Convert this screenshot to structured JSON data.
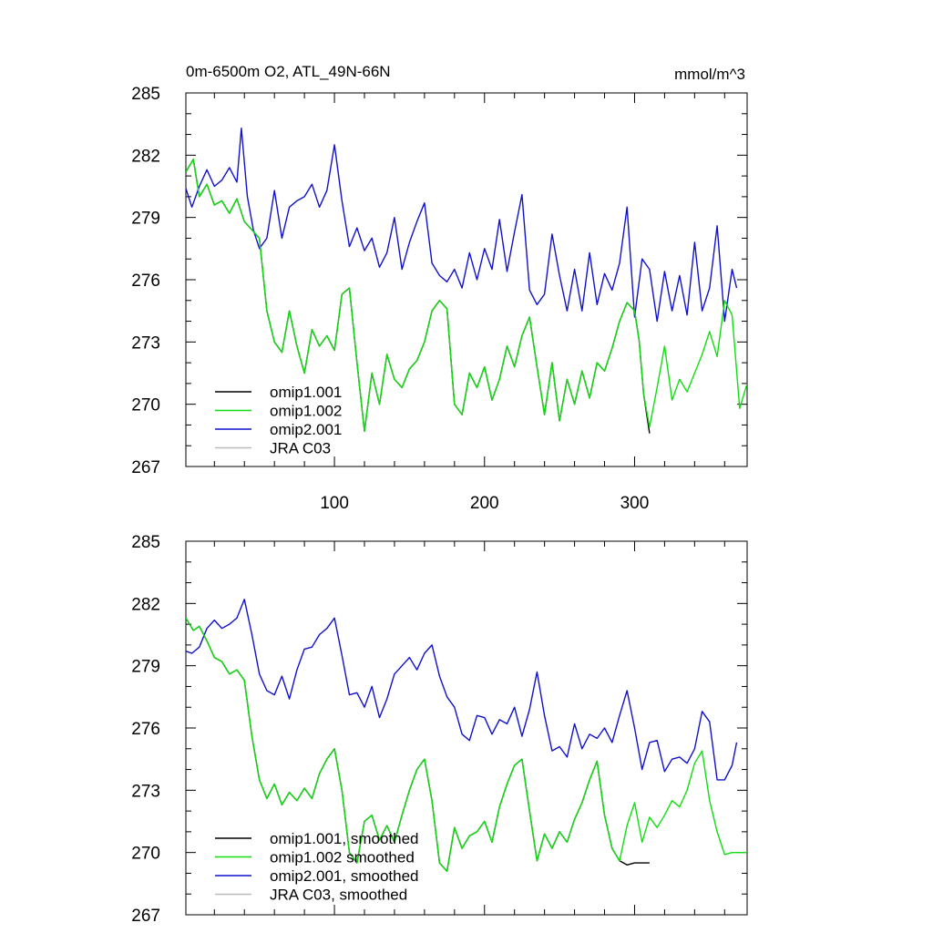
{
  "chart_data": [
    {
      "type": "line",
      "title": "0m-6500m O2, ATL_49N-66N",
      "units": "mmol/m^3",
      "xlim": [
        1,
        375
      ],
      "ylim": [
        267,
        285
      ],
      "yticks": [
        267,
        270,
        273,
        276,
        279,
        282,
        285
      ],
      "xticks": [
        100,
        200,
        300
      ],
      "grid": false,
      "legend_position": "bottom-left",
      "series": [
        {
          "name": "omip1.001",
          "color": "#000000",
          "x": [
            1,
            6,
            10,
            15,
            20,
            25,
            30,
            35,
            40,
            45,
            50,
            55,
            60,
            65,
            70,
            75,
            80,
            85,
            90,
            95,
            100,
            105,
            110,
            115,
            120,
            125,
            130,
            135,
            140,
            145,
            150,
            155,
            160,
            165,
            170,
            175,
            180,
            185,
            190,
            195,
            200,
            205,
            210,
            215,
            220,
            225,
            230,
            235,
            240,
            245,
            250,
            255,
            260,
            265,
            270,
            275,
            280,
            285,
            290,
            295,
            300,
            303,
            306,
            310
          ],
          "values": [
            281.2,
            281.8,
            280.0,
            280.6,
            279.6,
            279.8,
            279.2,
            279.9,
            278.8,
            278.4,
            278.0,
            274.5,
            273.0,
            272.5,
            274.5,
            272.8,
            271.5,
            273.6,
            272.8,
            273.3,
            272.6,
            275.3,
            275.6,
            272.0,
            268.7,
            271.5,
            270.0,
            272.4,
            271.2,
            270.8,
            271.7,
            272.1,
            273.0,
            274.5,
            275.0,
            274.6,
            270.0,
            269.5,
            271.5,
            270.8,
            271.8,
            270.2,
            271.2,
            272.8,
            271.8,
            273.3,
            274.2,
            271.8,
            269.5,
            272.0,
            269.2,
            271.2,
            270.0,
            271.6,
            270.3,
            272.0,
            271.6,
            272.7,
            274.0,
            274.9,
            274.5,
            273.1,
            270.5,
            268.6
          ]
        },
        {
          "name": "omip1.002",
          "color": "#11dd11",
          "x": [
            1,
            6,
            10,
            15,
            20,
            25,
            30,
            35,
            40,
            45,
            50,
            55,
            60,
            65,
            70,
            75,
            80,
            85,
            90,
            95,
            100,
            105,
            110,
            115,
            120,
            125,
            130,
            135,
            140,
            145,
            150,
            155,
            160,
            165,
            170,
            175,
            180,
            185,
            190,
            195,
            200,
            205,
            210,
            215,
            220,
            225,
            230,
            235,
            240,
            245,
            250,
            255,
            260,
            265,
            270,
            275,
            280,
            285,
            290,
            295,
            300,
            303,
            306,
            310,
            315,
            320,
            325,
            330,
            335,
            340,
            345,
            350,
            355,
            360,
            365,
            370,
            375
          ],
          "values": [
            281.2,
            281.8,
            280.0,
            280.6,
            279.6,
            279.8,
            279.2,
            279.9,
            278.8,
            278.4,
            278.0,
            274.5,
            273.0,
            272.5,
            274.5,
            272.8,
            271.5,
            273.6,
            272.8,
            273.3,
            272.6,
            275.3,
            275.6,
            272.0,
            268.7,
            271.5,
            270.0,
            272.4,
            271.2,
            270.8,
            271.7,
            272.1,
            273.0,
            274.5,
            275.0,
            274.6,
            270.0,
            269.5,
            271.5,
            270.8,
            271.8,
            270.2,
            271.2,
            272.8,
            271.8,
            273.3,
            274.2,
            271.8,
            269.5,
            272.0,
            269.2,
            271.2,
            270.0,
            271.6,
            270.3,
            272.0,
            271.6,
            272.7,
            274.0,
            274.9,
            274.5,
            273.1,
            270.5,
            268.9,
            270.8,
            272.8,
            270.2,
            271.2,
            270.6,
            271.5,
            272.4,
            273.5,
            272.3,
            275.0,
            274.3,
            269.8,
            271.0
          ]
        },
        {
          "name": "omip2.001",
          "color": "#1111cc",
          "x": [
            1,
            5,
            10,
            15,
            20,
            25,
            30,
            35,
            38,
            42,
            46,
            50,
            55,
            60,
            65,
            70,
            75,
            80,
            85,
            90,
            95,
            100,
            105,
            110,
            115,
            120,
            125,
            130,
            135,
            140,
            145,
            150,
            155,
            160,
            165,
            170,
            175,
            180,
            185,
            190,
            195,
            200,
            205,
            210,
            215,
            220,
            225,
            230,
            235,
            240,
            245,
            250,
            255,
            260,
            265,
            270,
            275,
            280,
            285,
            290,
            295,
            300,
            305,
            310,
            315,
            320,
            325,
            330,
            335,
            340,
            345,
            350,
            355,
            360,
            365,
            368
          ],
          "values": [
            280.4,
            279.5,
            280.5,
            281.3,
            280.5,
            280.8,
            281.4,
            280.7,
            283.3,
            280.0,
            278.4,
            277.5,
            278.0,
            280.3,
            278.0,
            279.5,
            279.8,
            280.0,
            280.6,
            279.5,
            280.3,
            282.5,
            279.8,
            277.6,
            278.5,
            277.4,
            278.0,
            276.6,
            277.3,
            279.0,
            276.5,
            277.8,
            278.8,
            279.7,
            276.8,
            276.2,
            275.9,
            276.5,
            275.6,
            277.3,
            276.0,
            277.5,
            276.5,
            278.9,
            276.4,
            278.3,
            280.1,
            275.5,
            274.8,
            275.3,
            278.2,
            276.2,
            274.5,
            276.5,
            274.5,
            277.3,
            274.8,
            276.3,
            275.5,
            276.8,
            279.5,
            274.2,
            277.0,
            276.5,
            274.0,
            276.4,
            274.5,
            276.2,
            274.3,
            277.8,
            274.5,
            275.6,
            278.6,
            274.0,
            276.5,
            275.6
          ]
        },
        {
          "name": "JRA C03",
          "color": "#bbbbbb",
          "x": [],
          "values": []
        }
      ]
    },
    {
      "type": "line",
      "title": "",
      "units": "",
      "xlim": [
        1,
        375
      ],
      "ylim": [
        267,
        285
      ],
      "yticks": [
        267,
        270,
        273,
        276,
        279,
        282,
        285
      ],
      "xticks": [],
      "grid": false,
      "legend_position": "bottom-left",
      "series": [
        {
          "name": "omip1.001, smoothed",
          "color": "#000000",
          "x": [
            1,
            6,
            10,
            15,
            20,
            25,
            30,
            35,
            40,
            45,
            50,
            55,
            60,
            65,
            70,
            75,
            80,
            85,
            90,
            95,
            100,
            105,
            110,
            115,
            120,
            125,
            130,
            135,
            140,
            145,
            150,
            155,
            160,
            165,
            170,
            175,
            180,
            185,
            190,
            195,
            200,
            205,
            210,
            215,
            220,
            225,
            230,
            235,
            240,
            245,
            250,
            255,
            260,
            265,
            270,
            275,
            280,
            285,
            290,
            295,
            300,
            305,
            310
          ],
          "values": [
            281.3,
            280.7,
            280.9,
            280.2,
            279.4,
            279.2,
            278.6,
            278.8,
            278.3,
            275.6,
            273.5,
            272.6,
            273.3,
            272.3,
            272.9,
            272.5,
            273.1,
            272.6,
            273.8,
            274.5,
            275.0,
            273.0,
            270.0,
            269.5,
            271.5,
            271.8,
            270.6,
            271.3,
            270.5,
            271.8,
            273.0,
            274.0,
            274.5,
            272.5,
            269.5,
            269.1,
            271.2,
            270.2,
            270.8,
            271.0,
            271.5,
            270.5,
            272.2,
            273.3,
            274.2,
            274.5,
            272.0,
            269.6,
            270.9,
            270.2,
            271.0,
            270.5,
            271.6,
            272.4,
            273.5,
            274.4,
            271.8,
            270.2,
            269.6,
            269.4,
            269.5,
            269.5,
            269.5
          ]
        },
        {
          "name": "omip1.002 smoothed",
          "color": "#11dd11",
          "x": [
            1,
            6,
            10,
            15,
            20,
            25,
            30,
            35,
            40,
            45,
            50,
            55,
            60,
            65,
            70,
            75,
            80,
            85,
            90,
            95,
            100,
            105,
            110,
            115,
            120,
            125,
            130,
            135,
            140,
            145,
            150,
            155,
            160,
            165,
            170,
            175,
            180,
            185,
            190,
            195,
            200,
            205,
            210,
            215,
            220,
            225,
            230,
            235,
            240,
            245,
            250,
            255,
            260,
            265,
            270,
            275,
            280,
            285,
            290,
            295,
            300,
            305,
            310,
            315,
            320,
            325,
            330,
            335,
            340,
            345,
            350,
            355,
            360,
            365,
            370,
            375
          ],
          "values": [
            281.3,
            280.7,
            280.9,
            280.2,
            279.4,
            279.2,
            278.6,
            278.8,
            278.3,
            275.6,
            273.5,
            272.6,
            273.3,
            272.3,
            272.9,
            272.5,
            273.1,
            272.6,
            273.8,
            274.5,
            275.0,
            273.0,
            270.0,
            269.5,
            271.5,
            271.8,
            270.6,
            271.3,
            270.5,
            271.8,
            273.0,
            274.0,
            274.5,
            272.5,
            269.5,
            269.1,
            271.2,
            270.2,
            270.8,
            271.0,
            271.5,
            270.5,
            272.2,
            273.3,
            274.2,
            274.5,
            272.0,
            269.6,
            270.9,
            270.2,
            271.0,
            270.5,
            271.6,
            272.4,
            273.5,
            274.4,
            271.8,
            270.2,
            269.6,
            271.3,
            272.4,
            270.5,
            271.7,
            271.2,
            271.8,
            272.5,
            272.2,
            273.0,
            274.3,
            274.9,
            272.5,
            271.0,
            269.9,
            270.0,
            270.0,
            270.0
          ]
        },
        {
          "name": "omip2.001, smoothed",
          "color": "#1111cc",
          "x": [
            1,
            5,
            10,
            15,
            20,
            25,
            30,
            35,
            40,
            45,
            50,
            55,
            60,
            65,
            70,
            75,
            80,
            85,
            90,
            95,
            100,
            105,
            110,
            115,
            120,
            125,
            130,
            135,
            140,
            145,
            150,
            155,
            160,
            165,
            170,
            175,
            180,
            185,
            190,
            195,
            200,
            205,
            210,
            215,
            220,
            225,
            230,
            235,
            240,
            245,
            250,
            255,
            260,
            265,
            270,
            275,
            280,
            285,
            290,
            295,
            300,
            305,
            310,
            315,
            320,
            325,
            330,
            335,
            340,
            345,
            350,
            355,
            360,
            365,
            368
          ],
          "values": [
            279.7,
            279.6,
            279.9,
            280.8,
            281.2,
            280.8,
            281.0,
            281.3,
            282.2,
            280.5,
            278.6,
            277.8,
            277.6,
            278.5,
            277.4,
            278.8,
            279.8,
            279.9,
            280.5,
            280.8,
            281.3,
            279.5,
            277.6,
            277.7,
            277.0,
            278.0,
            276.5,
            277.4,
            278.6,
            279.0,
            279.4,
            278.8,
            279.6,
            280.0,
            278.5,
            277.5,
            277.0,
            275.7,
            275.4,
            276.6,
            276.5,
            275.7,
            276.4,
            276.2,
            277.0,
            275.6,
            276.9,
            278.7,
            276.6,
            274.9,
            275.1,
            274.6,
            276.2,
            275.0,
            275.7,
            275.5,
            276.0,
            275.3,
            276.6,
            277.8,
            276.0,
            274.0,
            275.3,
            275.4,
            273.9,
            274.5,
            274.6,
            274.3,
            275.0,
            276.8,
            276.3,
            273.5,
            273.5,
            274.2,
            275.3
          ]
        },
        {
          "name": "JRA C03, smoothed",
          "color": "#bbbbbb",
          "x": [],
          "values": []
        }
      ]
    }
  ]
}
